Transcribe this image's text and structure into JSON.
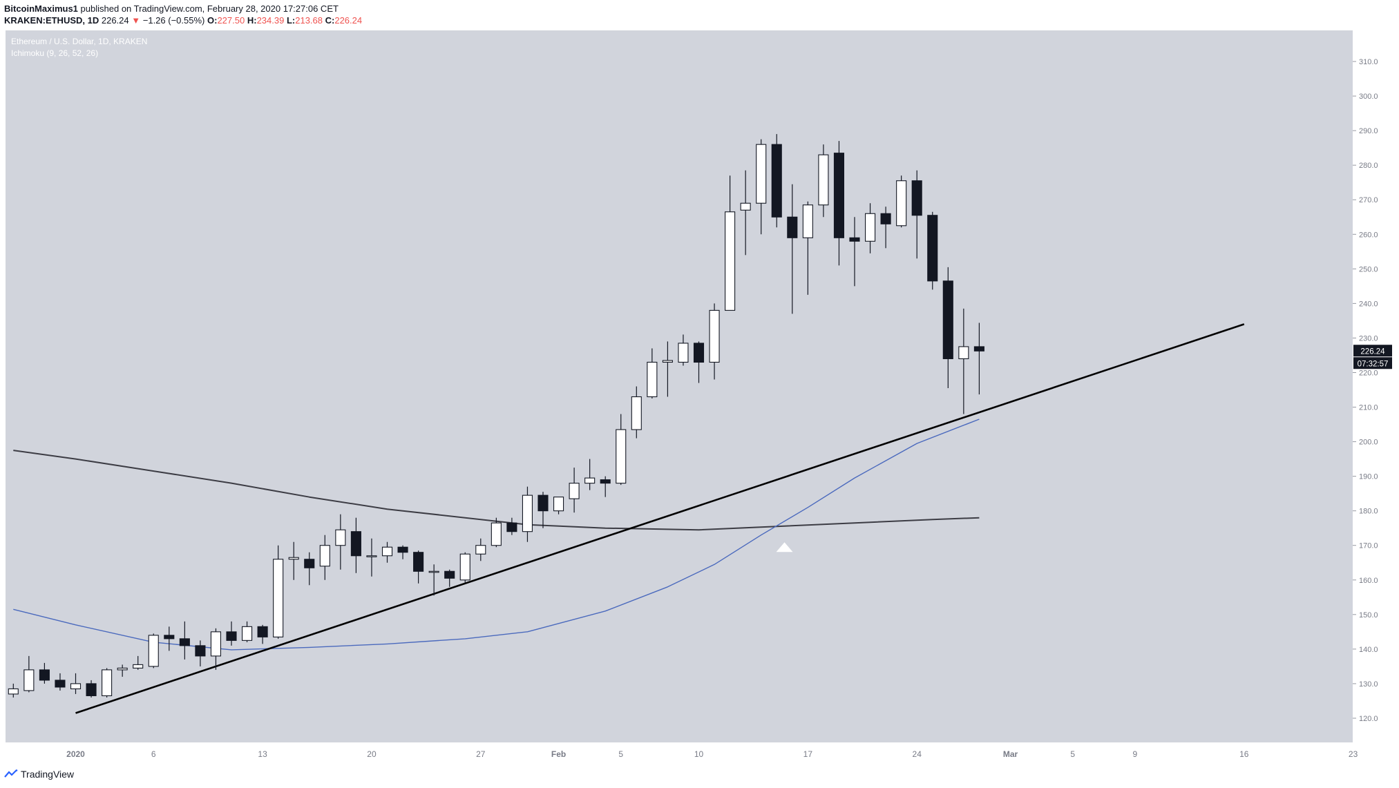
{
  "header": {
    "author": "BitcoinMaximus1",
    "published": "published on TradingView.com, February 28, 2020 17:27:06 CET",
    "symbol": "KRAKEN:ETHUSD, 1D",
    "last": "226.24",
    "change_arrow": "▼",
    "change": "−1.26 (−0.55%)",
    "o_label": "O:",
    "o_value": "227.50",
    "h_label": "H:",
    "h_value": "234.39",
    "l_label": "L:",
    "l_value": "213.68",
    "c_label": "C:",
    "c_value": "226.24"
  },
  "footer": {
    "brand": "TradingView"
  },
  "colors": {
    "background": "#d1d4dc",
    "bull_body": "#ffffff",
    "bear_body": "#131722",
    "ma_long": "#3c3c44",
    "ma_short": "#4a69bd",
    "trendline": "#000000",
    "price_label_bg": "#131722"
  },
  "chart_data": {
    "type": "candlestick",
    "title": "Ethereum / U.S. Dollar, 1D, KRAKEN",
    "subtitle": "Ichimoku (9, 26, 52, 26)",
    "ylim": [
      113,
      319
    ],
    "y_ticks": [
      120,
      130,
      140,
      150,
      160,
      170,
      180,
      190,
      200,
      210,
      220,
      230,
      240,
      250,
      260,
      270,
      280,
      290,
      300,
      310
    ],
    "x_ticks": [
      {
        "label": "2020",
        "day": 0
      },
      {
        "label": "6",
        "day": 5
      },
      {
        "label": "13",
        "day": 12
      },
      {
        "label": "20",
        "day": 19
      },
      {
        "label": "27",
        "day": 26
      },
      {
        "label": "Feb",
        "day": 31
      },
      {
        "label": "5",
        "day": 35
      },
      {
        "label": "10",
        "day": 40
      },
      {
        "label": "17",
        "day": 47
      },
      {
        "label": "24",
        "day": 54
      },
      {
        "label": "Mar",
        "day": 60
      },
      {
        "label": "5",
        "day": 64
      },
      {
        "label": "9",
        "day": 68
      },
      {
        "label": "16",
        "day": 75
      },
      {
        "label": "23",
        "day": 82
      }
    ],
    "candles": [
      {
        "day": -4,
        "o": 127,
        "h": 130,
        "l": 126,
        "c": 128.5
      },
      {
        "day": -3,
        "o": 128,
        "h": 138,
        "l": 127.5,
        "c": 134
      },
      {
        "day": -2,
        "o": 134,
        "h": 136,
        "l": 130,
        "c": 131
      },
      {
        "day": -1,
        "o": 131,
        "h": 133,
        "l": 128,
        "c": 129
      },
      {
        "day": 0,
        "o": 128.5,
        "h": 133,
        "l": 127,
        "c": 130
      },
      {
        "day": 1,
        "o": 130,
        "h": 131,
        "l": 126,
        "c": 126.5
      },
      {
        "day": 2,
        "o": 126.5,
        "h": 134.5,
        "l": 126,
        "c": 134
      },
      {
        "day": 3,
        "o": 134,
        "h": 135.5,
        "l": 132,
        "c": 134.5
      },
      {
        "day": 4,
        "o": 134.5,
        "h": 138,
        "l": 134,
        "c": 135.5
      },
      {
        "day": 5,
        "o": 135,
        "h": 144.5,
        "l": 134.5,
        "c": 144
      },
      {
        "day": 6,
        "o": 144,
        "h": 146.5,
        "l": 139.5,
        "c": 143
      },
      {
        "day": 7,
        "o": 143,
        "h": 148,
        "l": 137,
        "c": 141
      },
      {
        "day": 8,
        "o": 141,
        "h": 142.5,
        "l": 135,
        "c": 138
      },
      {
        "day": 9,
        "o": 138,
        "h": 146,
        "l": 134,
        "c": 145
      },
      {
        "day": 10,
        "o": 145,
        "h": 148,
        "l": 141,
        "c": 142.5
      },
      {
        "day": 11,
        "o": 142.5,
        "h": 148,
        "l": 142,
        "c": 146.5
      },
      {
        "day": 12,
        "o": 146.5,
        "h": 147,
        "l": 141.5,
        "c": 143.5
      },
      {
        "day": 13,
        "o": 143.5,
        "h": 170,
        "l": 143,
        "c": 166
      },
      {
        "day": 14,
        "o": 166,
        "h": 171,
        "l": 160,
        "c": 166.5
      },
      {
        "day": 15,
        "o": 166,
        "h": 168,
        "l": 158.5,
        "c": 163.5
      },
      {
        "day": 16,
        "o": 164,
        "h": 173,
        "l": 160,
        "c": 170
      },
      {
        "day": 17,
        "o": 170,
        "h": 179,
        "l": 163,
        "c": 174.5
      },
      {
        "day": 18,
        "o": 174,
        "h": 178,
        "l": 162,
        "c": 167
      },
      {
        "day": 19,
        "o": 167,
        "h": 172,
        "l": 161,
        "c": 167
      },
      {
        "day": 20,
        "o": 167,
        "h": 171,
        "l": 165,
        "c": 169.5
      },
      {
        "day": 21,
        "o": 169.5,
        "h": 170,
        "l": 166,
        "c": 168
      },
      {
        "day": 22,
        "o": 168,
        "h": 168.5,
        "l": 159,
        "c": 162.5
      },
      {
        "day": 23,
        "o": 162.5,
        "h": 164.5,
        "l": 155.5,
        "c": 162.5
      },
      {
        "day": 24,
        "o": 162.5,
        "h": 163,
        "l": 158,
        "c": 160.5
      },
      {
        "day": 25,
        "o": 160,
        "h": 168,
        "l": 159,
        "c": 167.5
      },
      {
        "day": 26,
        "o": 167.5,
        "h": 172,
        "l": 165.5,
        "c": 170
      },
      {
        "day": 27,
        "o": 170,
        "h": 178,
        "l": 169.5,
        "c": 176.5
      },
      {
        "day": 28,
        "o": 176.5,
        "h": 178,
        "l": 173,
        "c": 174
      },
      {
        "day": 29,
        "o": 174,
        "h": 187,
        "l": 171,
        "c": 184.5
      },
      {
        "day": 30,
        "o": 184.5,
        "h": 185.5,
        "l": 175,
        "c": 180
      },
      {
        "day": 31,
        "o": 180,
        "h": 184,
        "l": 179,
        "c": 184
      },
      {
        "day": 32,
        "o": 183.5,
        "h": 192.5,
        "l": 179.5,
        "c": 188
      },
      {
        "day": 33,
        "o": 188,
        "h": 195,
        "l": 186,
        "c": 189.5
      },
      {
        "day": 34,
        "o": 189,
        "h": 190,
        "l": 184,
        "c": 188
      },
      {
        "day": 35,
        "o": 188,
        "h": 208,
        "l": 187.5,
        "c": 203.5
      },
      {
        "day": 36,
        "o": 203.5,
        "h": 216,
        "l": 201,
        "c": 213
      },
      {
        "day": 37,
        "o": 213,
        "h": 227,
        "l": 212.5,
        "c": 223
      },
      {
        "day": 38,
        "o": 223,
        "h": 229,
        "l": 213,
        "c": 223.5
      },
      {
        "day": 39,
        "o": 223,
        "h": 231,
        "l": 222,
        "c": 228.5
      },
      {
        "day": 40,
        "o": 228.5,
        "h": 229,
        "l": 217,
        "c": 223
      },
      {
        "day": 41,
        "o": 223,
        "h": 240,
        "l": 218,
        "c": 238
      },
      {
        "day": 42,
        "o": 238,
        "h": 277,
        "l": 238,
        "c": 266.5
      },
      {
        "day": 43,
        "o": 267,
        "h": 278.5,
        "l": 254,
        "c": 269
      },
      {
        "day": 44,
        "o": 269,
        "h": 287.5,
        "l": 260,
        "c": 286
      },
      {
        "day": 45,
        "o": 286,
        "h": 289,
        "l": 262,
        "c": 265
      },
      {
        "day": 46,
        "o": 265,
        "h": 274.5,
        "l": 237,
        "c": 259
      },
      {
        "day": 47,
        "o": 259,
        "h": 269.5,
        "l": 242.5,
        "c": 268.5
      },
      {
        "day": 48,
        "o": 268.5,
        "h": 286,
        "l": 265,
        "c": 283
      },
      {
        "day": 49,
        "o": 283.5,
        "h": 287,
        "l": 251,
        "c": 259
      },
      {
        "day": 50,
        "o": 259,
        "h": 265,
        "l": 245,
        "c": 258
      },
      {
        "day": 51,
        "o": 258,
        "h": 269,
        "l": 254.5,
        "c": 266
      },
      {
        "day": 52,
        "o": 266,
        "h": 268,
        "l": 256,
        "c": 263
      },
      {
        "day": 53,
        "o": 262.5,
        "h": 277,
        "l": 262,
        "c": 275.5
      },
      {
        "day": 54,
        "o": 275.5,
        "h": 278.5,
        "l": 253,
        "c": 265.5
      },
      {
        "day": 55,
        "o": 265.5,
        "h": 266.5,
        "l": 244,
        "c": 246.5
      },
      {
        "day": 56,
        "o": 246.5,
        "h": 250.5,
        "l": 215.5,
        "c": 224
      },
      {
        "day": 57,
        "o": 224,
        "h": 238.5,
        "l": 208,
        "c": 227.5
      },
      {
        "day": 58,
        "o": 227.5,
        "h": 234.39,
        "l": 213.68,
        "c": 226.24
      }
    ],
    "series": [
      {
        "style": "dark-ma",
        "points": [
          [
            -4,
            197.5
          ],
          [
            0,
            195
          ],
          [
            5,
            191.5
          ],
          [
            10,
            188
          ],
          [
            15,
            184
          ],
          [
            20,
            180.5
          ],
          [
            25,
            178
          ],
          [
            29,
            176
          ],
          [
            34,
            175
          ],
          [
            40,
            174.5
          ],
          [
            45,
            175.5
          ],
          [
            50,
            176.5
          ],
          [
            55,
            177.5
          ],
          [
            58,
            178
          ]
        ]
      },
      {
        "style": "blue-ma",
        "points": [
          [
            -4,
            151.5
          ],
          [
            0,
            147
          ],
          [
            5,
            142
          ],
          [
            10,
            139.8
          ],
          [
            15,
            140.5
          ],
          [
            20,
            141.5
          ],
          [
            25,
            143
          ],
          [
            29,
            145
          ],
          [
            34,
            151
          ],
          [
            38,
            158
          ],
          [
            41,
            164.5
          ],
          [
            44,
            173
          ],
          [
            47,
            181
          ],
          [
            50,
            189.5
          ],
          [
            54,
            199.5
          ],
          [
            58,
            206.5
          ]
        ]
      },
      {
        "style": "trendline",
        "points": [
          [
            0,
            121.5
          ],
          [
            75,
            234
          ]
        ]
      }
    ],
    "annotations": [
      {
        "type": "arrow-up",
        "day": 45.5,
        "price": 169.5
      }
    ],
    "last_price_label": "226.24",
    "countdown_label": "07:32:57"
  }
}
